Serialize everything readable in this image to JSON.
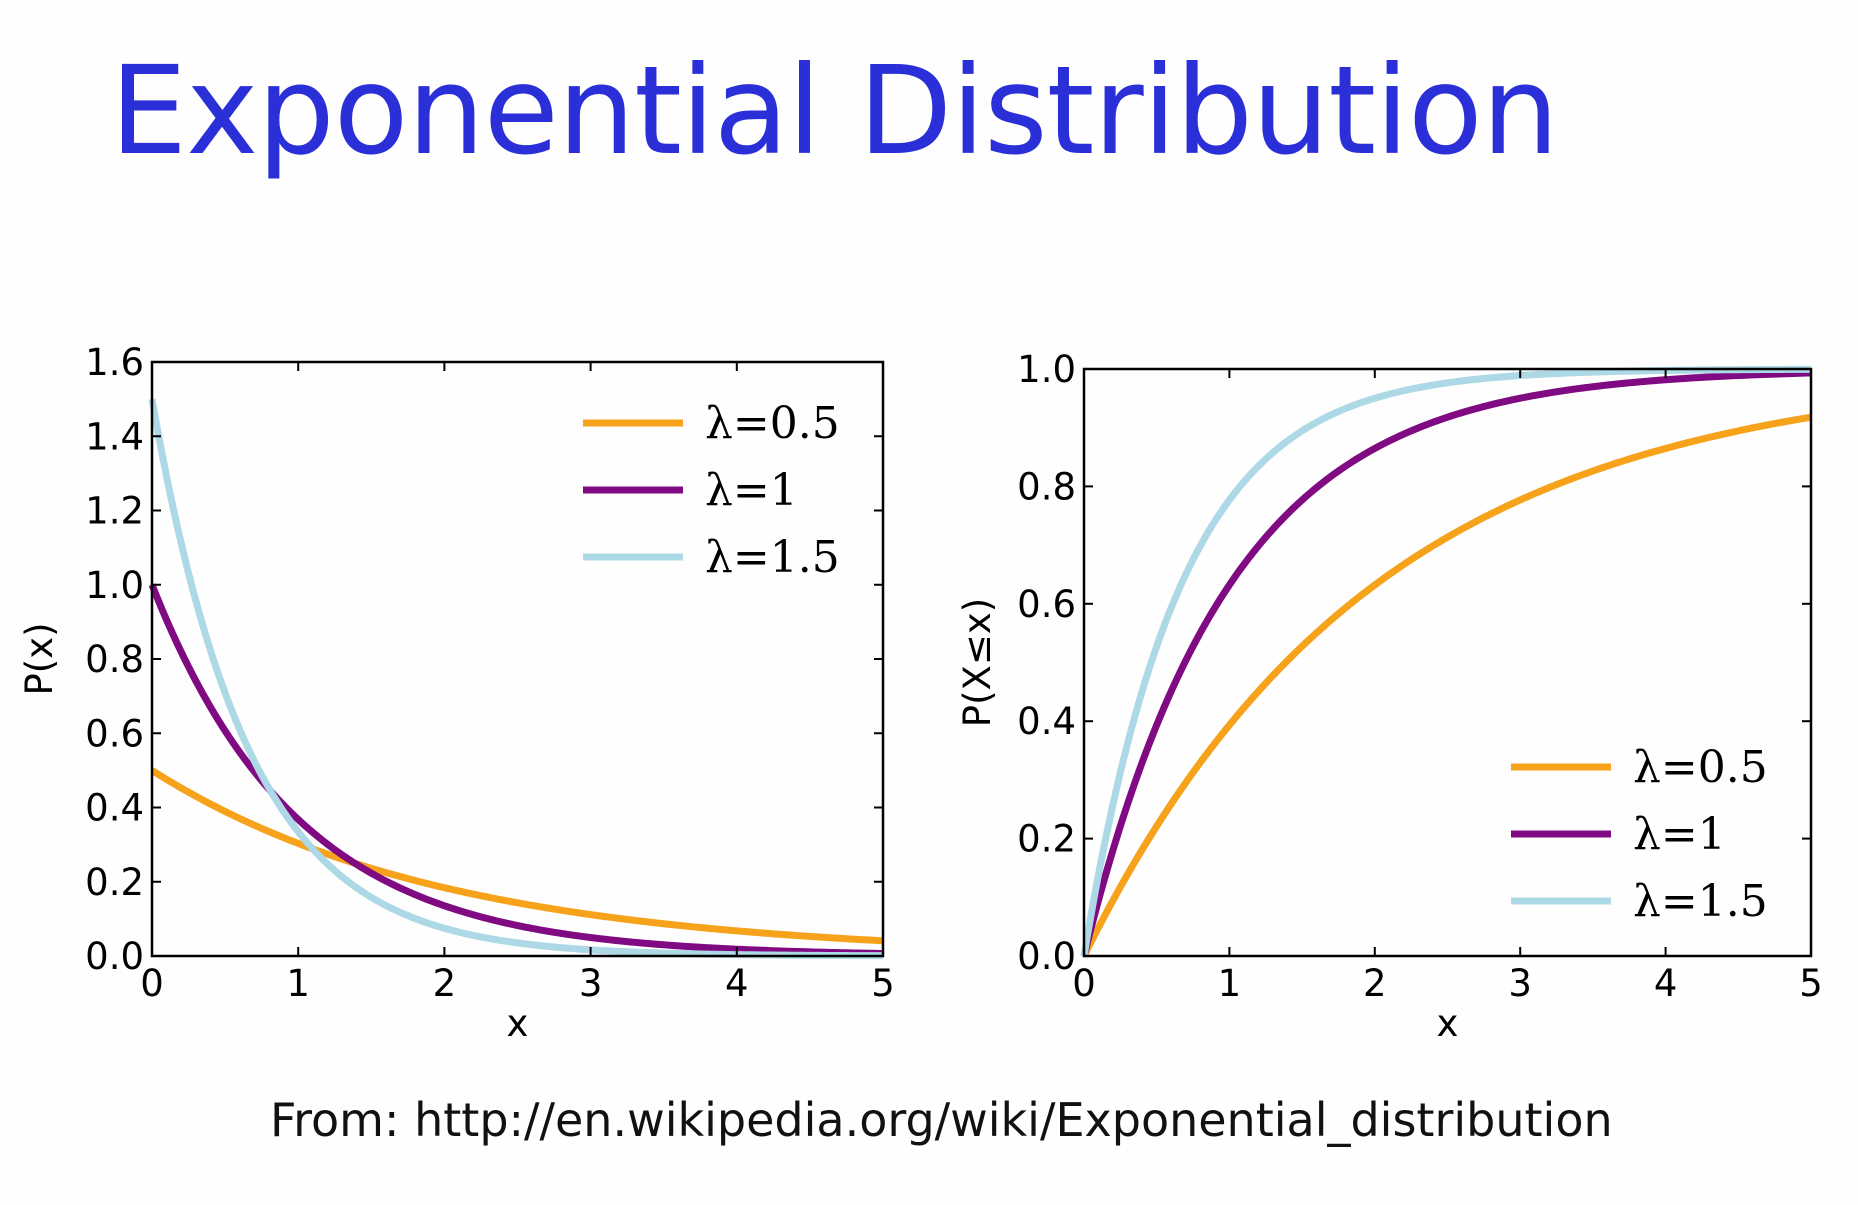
{
  "title": "Exponential Distribution",
  "source": "From: http://en.wikipedia.org/wiki/Exponential_distribution",
  "colors": {
    "title": "#2b2fd8",
    "lambda_0_5": "#f7a21b",
    "lambda_1": "#7f0a82",
    "lambda_1_5": "#add8e6"
  },
  "chart_data": [
    {
      "type": "line",
      "xlabel": "x",
      "ylabel": "P(x)",
      "xlim": [
        0,
        5
      ],
      "ylim": [
        0,
        1.6
      ],
      "xticks": [
        "0",
        "1",
        "2",
        "3",
        "4",
        "5"
      ],
      "yticks": [
        "0.0",
        "0.2",
        "0.4",
        "0.6",
        "0.8",
        "1.0",
        "1.2",
        "1.4",
        "1.6"
      ],
      "legend_position": "top-right",
      "x": [
        0,
        0.25,
        0.5,
        0.75,
        1,
        1.5,
        2,
        2.5,
        3,
        3.5,
        4,
        4.5,
        5
      ],
      "series": [
        {
          "name": "λ=0.5",
          "color": "#f7a21b",
          "values": [
            0.5,
            0.441,
            0.389,
            0.344,
            0.303,
            0.236,
            0.184,
            0.143,
            0.112,
            0.087,
            0.068,
            0.053,
            0.041
          ]
        },
        {
          "name": "λ=1",
          "color": "#7f0a82",
          "values": [
            1.0,
            0.779,
            0.607,
            0.472,
            0.368,
            0.223,
            0.135,
            0.082,
            0.05,
            0.03,
            0.018,
            0.011,
            0.007
          ]
        },
        {
          "name": "λ=1.5",
          "color": "#add8e6",
          "values": [
            1.5,
            1.031,
            0.709,
            0.487,
            0.335,
            0.158,
            0.075,
            0.035,
            0.017,
            0.008,
            0.004,
            0.002,
            0.001
          ]
        }
      ]
    },
    {
      "type": "line",
      "xlabel": "x",
      "ylabel": "P(X≤x)",
      "xlim": [
        0,
        5
      ],
      "ylim": [
        0,
        1.0
      ],
      "xticks": [
        "0",
        "1",
        "2",
        "3",
        "4",
        "5"
      ],
      "yticks": [
        "0.0",
        "0.2",
        "0.4",
        "0.6",
        "0.8",
        "1.0"
      ],
      "legend_position": "bottom-right",
      "x": [
        0,
        0.25,
        0.5,
        0.75,
        1,
        1.5,
        2,
        2.5,
        3,
        3.5,
        4,
        4.5,
        5
      ],
      "series": [
        {
          "name": "λ=0.5",
          "color": "#f7a21b",
          "values": [
            0,
            0.118,
            0.221,
            0.313,
            0.393,
            0.528,
            0.632,
            0.713,
            0.777,
            0.826,
            0.865,
            0.895,
            0.918
          ]
        },
        {
          "name": "λ=1",
          "color": "#7f0a82",
          "values": [
            0,
            0.221,
            0.393,
            0.528,
            0.632,
            0.777,
            0.865,
            0.918,
            0.95,
            0.97,
            0.982,
            0.989,
            0.993
          ]
        },
        {
          "name": "λ=1.5",
          "color": "#add8e6",
          "values": [
            0,
            0.313,
            0.528,
            0.675,
            0.777,
            0.895,
            0.95,
            0.976,
            0.989,
            0.995,
            0.998,
            0.999,
            0.999
          ]
        }
      ]
    }
  ]
}
